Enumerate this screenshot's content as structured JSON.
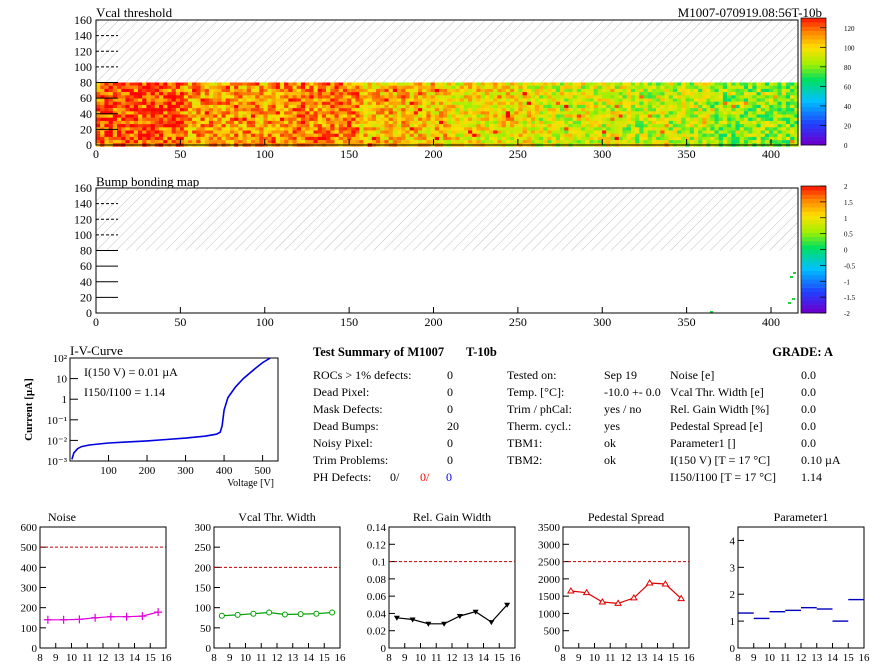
{
  "module_id": "M1007-070919.08:56T-10b",
  "maps": [
    {
      "title": "Vcal threshold",
      "xticks": [
        0,
        50,
        100,
        150,
        200,
        250,
        300,
        350,
        400
      ],
      "yticks": [
        0,
        20,
        40,
        60,
        80,
        100,
        120,
        140,
        160
      ],
      "xlim": [
        0,
        416
      ],
      "ylim": [
        0,
        160
      ],
      "data_rows": [
        0,
        80
      ],
      "palette_ticks": [
        "120",
        "100",
        "80",
        "60",
        "40",
        "20",
        "0"
      ],
      "palette_range": [
        0,
        130
      ],
      "roc_means": [
        118,
        108,
        112,
        102,
        96,
        90,
        86,
        80,
        84,
        92,
        88,
        94,
        98,
        104,
        110,
        102
      ],
      "roc_ranges": [
        [
          0,
          25,
          80,
          118
        ],
        [
          25,
          52,
          80,
          108
        ],
        [
          52,
          77,
          80,
          112
        ],
        [
          77,
          104,
          80,
          102
        ]
      ]
    },
    {
      "title": "Bump bonding map",
      "xticks": [
        0,
        50,
        100,
        150,
        200,
        250,
        300,
        350,
        400
      ],
      "yticks": [
        0,
        20,
        40,
        60,
        80,
        100,
        120,
        140,
        160
      ],
      "xlim": [
        0,
        416
      ],
      "ylim": [
        0,
        160
      ],
      "palette_ticks": [
        "2",
        "1.5",
        "1",
        "0.5",
        "0",
        "-0.5",
        "-1",
        "-1.5",
        "-2"
      ],
      "palette_range": [
        -2,
        2
      ]
    }
  ],
  "iv": {
    "title": "I-V-Curve",
    "ylabel": "Current [µA]",
    "xlabel": "Voltage [V]",
    "annotation1": "I(150 V) = 0.01 µA",
    "annotation2": "I150/I100 =  1.14",
    "yticks": [
      "10²",
      "10",
      "1",
      "10⁻¹",
      "10⁻²",
      "10⁻³"
    ],
    "xticks": [
      "100",
      "200",
      "300",
      "400",
      "500"
    ],
    "xlim": [
      0,
      540
    ],
    "ylim_log10": [
      -3,
      2
    ],
    "chart_data": {
      "type": "line",
      "x": [
        5,
        10,
        20,
        30,
        50,
        100,
        150,
        200,
        250,
        300,
        350,
        380,
        390,
        395,
        400,
        410,
        430,
        450,
        480,
        500,
        520
      ],
      "y": [
        0.0012,
        0.0025,
        0.004,
        0.005,
        0.006,
        0.0075,
        0.0085,
        0.0095,
        0.011,
        0.013,
        0.016,
        0.02,
        0.025,
        0.05,
        0.3,
        1.2,
        4,
        10,
        30,
        60,
        100
      ]
    }
  },
  "summary": {
    "title": "Test Summary of M1007",
    "tag": "T-10b",
    "grade": "GRADE:  A",
    "left": [
      {
        "label": "ROCs > 1% defects:",
        "value": "0"
      },
      {
        "label": "Dead Pixel:",
        "value": "0"
      },
      {
        "label": "Mask Defects:",
        "value": "0"
      },
      {
        "label": "Dead Bumps:",
        "value": "20"
      },
      {
        "label": "Noisy Pixel:",
        "value": "0"
      },
      {
        "label": "Trim Problems:",
        "value": "0"
      }
    ],
    "ph_label": "PH Defects:",
    "ph_values": [
      {
        "value": "0/",
        "color": "#000000"
      },
      {
        "value": "0/",
        "color": "#ff0000"
      },
      {
        "value": "0",
        "color": "#0000ff"
      }
    ],
    "middle": [
      {
        "label": "Tested on:",
        "value": "Sep 19"
      },
      {
        "label": "Temp. [°C]:",
        "value": "-10.0 +- 0.0"
      },
      {
        "label": "Trim / phCal:",
        "value": "yes / no"
      },
      {
        "label": "Therm. cycl.:",
        "value": "yes"
      },
      {
        "label": "TBM1:",
        "value": "ok"
      },
      {
        "label": "TBM2:",
        "value": "ok"
      }
    ],
    "right": [
      {
        "label": "Noise [e]",
        "value": "0.0"
      },
      {
        "label": "Vcal Thr. Width [e]",
        "value": "0.0"
      },
      {
        "label": "Rel. Gain Width [%]",
        "value": "0.0"
      },
      {
        "label": "Pedestal Spread [e]",
        "value": "0.0"
      },
      {
        "label": "Parameter1 []",
        "value": "0.0"
      },
      {
        "label": "I(150 V) [T = 17 °C]",
        "value": "0.10 µA"
      },
      {
        "label": "I150/I100  [T = 17 °C]",
        "value": "1.14"
      }
    ]
  },
  "small_charts": [
    {
      "title": "Noise",
      "color": "#e000e0",
      "marker": "plus",
      "ylim": [
        0,
        600
      ],
      "yticks": [
        "0",
        "100",
        "200",
        "300",
        "400",
        "500",
        "600"
      ],
      "limit": 500,
      "xticks": [
        "8",
        "9",
        "10",
        "11",
        "12",
        "13",
        "14",
        "15",
        "16"
      ],
      "xlim": [
        8,
        16
      ],
      "chart_data": {
        "type": "line",
        "x": [
          8.5,
          9.5,
          10.5,
          11.5,
          12.5,
          13.5,
          14.5,
          15.5
        ],
        "y": [
          140,
          140,
          142,
          150,
          155,
          155,
          158,
          178
        ]
      }
    },
    {
      "title": "Vcal Thr. Width",
      "color": "#00a000",
      "marker": "circle",
      "ylim": [
        0,
        300
      ],
      "yticks": [
        "0",
        "50",
        "100",
        "150",
        "200",
        "250",
        "300"
      ],
      "limit": 200,
      "xticks": [
        "8",
        "9",
        "10",
        "11",
        "12",
        "13",
        "14",
        "15",
        "16"
      ],
      "xlim": [
        8,
        16
      ],
      "chart_data": {
        "type": "line",
        "x": [
          8.5,
          9.5,
          10.5,
          11.5,
          12.5,
          13.5,
          14.5,
          15.5
        ],
        "y": [
          80,
          82,
          85,
          88,
          83,
          84,
          85,
          88
        ]
      }
    },
    {
      "title": "Rel. Gain Width",
      "color": "#000000",
      "marker": "tri-down",
      "ylim": [
        0,
        0.14
      ],
      "yticks": [
        "0",
        "0.02",
        "0.04",
        "0.06",
        "0.08",
        "0.1",
        "0.12",
        "0.14"
      ],
      "limit": 0.1,
      "xticks": [
        "8",
        "9",
        "10",
        "11",
        "12",
        "13",
        "14",
        "15",
        "16"
      ],
      "xlim": [
        8,
        16
      ],
      "chart_data": {
        "type": "line",
        "x": [
          8.5,
          9.5,
          10.5,
          11.5,
          12.5,
          13.5,
          14.5,
          15.5
        ],
        "y": [
          0.035,
          0.033,
          0.028,
          0.028,
          0.037,
          0.042,
          0.03,
          0.05
        ]
      }
    },
    {
      "title": "Pedestal Spread",
      "color": "#e00000",
      "marker": "tri-up",
      "ylim": [
        0,
        3500
      ],
      "yticks": [
        "0",
        "500",
        "1000",
        "1500",
        "2000",
        "2500",
        "3000",
        "3500"
      ],
      "limit": 2500,
      "xticks": [
        "8",
        "9",
        "10",
        "11",
        "12",
        "13",
        "14",
        "15",
        "16"
      ],
      "xlim": [
        8,
        16
      ],
      "chart_data": {
        "type": "line",
        "x": [
          8.5,
          9.5,
          10.5,
          11.5,
          12.5,
          13.5,
          14.5,
          15.5
        ],
        "y": [
          1650,
          1600,
          1330,
          1290,
          1450,
          1880,
          1850,
          1430
        ]
      }
    },
    {
      "title": "Parameter1",
      "color": "#0000c0",
      "marker": "hbar",
      "ylim": [
        0,
        4.5
      ],
      "yticks": [
        "0",
        "1",
        "2",
        "3",
        "4"
      ],
      "xticks": [
        "8",
        "9",
        "10",
        "11",
        "12",
        "13",
        "14",
        "15",
        "16"
      ],
      "xlim": [
        8,
        16
      ],
      "chart_data": {
        "type": "scatter",
        "x": [
          8.5,
          9.5,
          10.5,
          11.5,
          12.5,
          13.5,
          14.5,
          15.5
        ],
        "y": [
          1.3,
          1.1,
          1.35,
          1.4,
          1.5,
          1.45,
          1.0,
          1.8
        ]
      }
    }
  ]
}
